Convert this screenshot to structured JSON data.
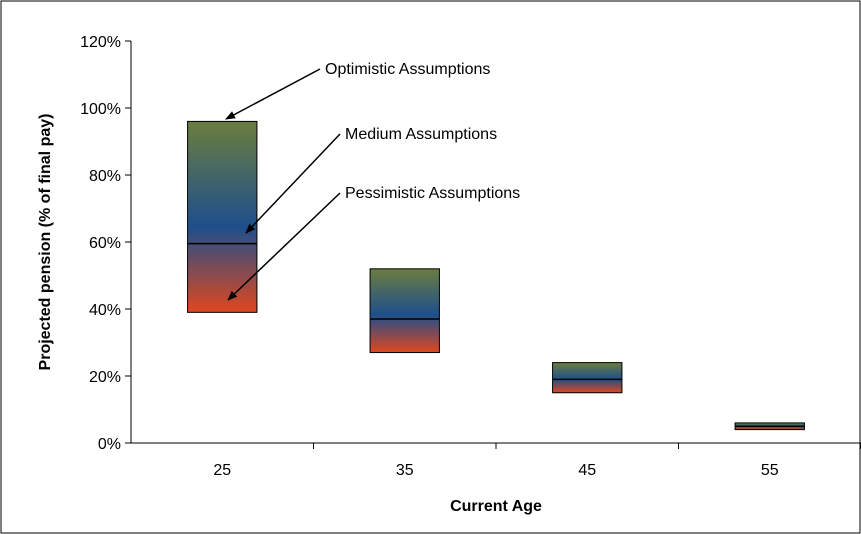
{
  "chart_data": {
    "type": "bar",
    "xlabel": "Current Age",
    "ylabel": "Projected pension (% of final pay)",
    "categories": [
      "25",
      "35",
      "45",
      "55"
    ],
    "series": [
      {
        "name": "Pessimistic Assumptions",
        "values": [
          39,
          27,
          15,
          4
        ]
      },
      {
        "name": "Medium Assumptions",
        "values": [
          59.5,
          37,
          19,
          5
        ]
      },
      {
        "name": "Optimistic Assumptions",
        "values": [
          96,
          52,
          24,
          6
        ]
      }
    ],
    "ylim": [
      0,
      120
    ],
    "yticks": [
      "0%",
      "20%",
      "40%",
      "60%",
      "80%",
      "100%",
      "120%"
    ],
    "grid": false,
    "legend": "annotations with arrows pointing to the first bar",
    "colors": {
      "top": "#6b7d3f",
      "middle": "#1e4f8c",
      "bottom": "#e0471e",
      "line": "#000000"
    }
  }
}
